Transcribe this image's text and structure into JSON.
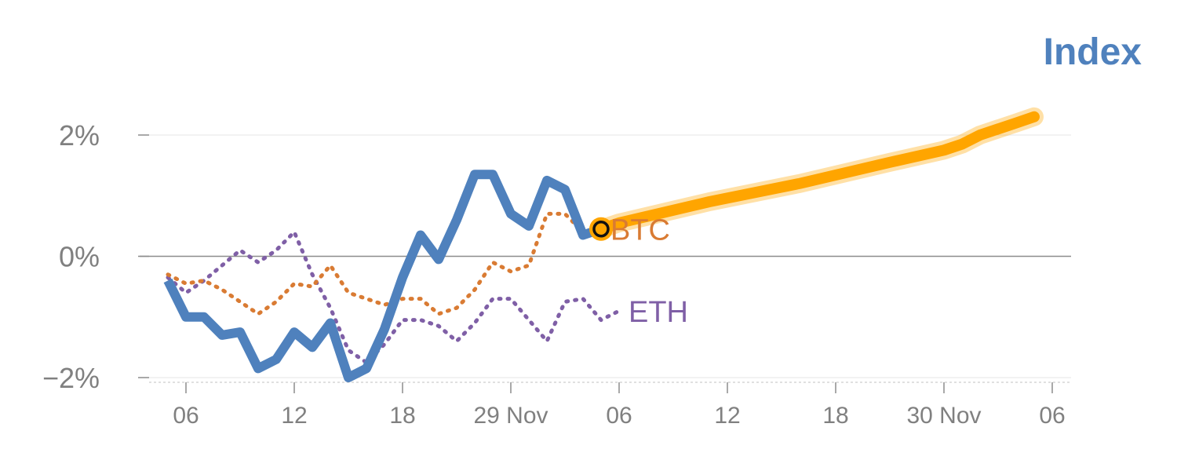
{
  "chart_data": {
    "type": "line",
    "title": "Index",
    "y_unit": "%",
    "ylim": [
      -2,
      2
    ],
    "y_ticks": [
      {
        "value": 2,
        "label": "2%"
      },
      {
        "value": 0,
        "label": "0%"
      },
      {
        "value": -2,
        "label": "−2%"
      }
    ],
    "x_ticks": [
      {
        "x": 6,
        "label": "06"
      },
      {
        "x": 12,
        "label": "12"
      },
      {
        "x": 18,
        "label": "18"
      },
      {
        "x": 24,
        "label": "29 Nov"
      },
      {
        "x": 30,
        "label": "06"
      },
      {
        "x": 36,
        "label": "12"
      },
      {
        "x": 42,
        "label": "18"
      },
      {
        "x": 48,
        "label": "30 Nov"
      },
      {
        "x": 54,
        "label": "06"
      }
    ],
    "series": [
      {
        "name": "ETH",
        "color": "#7f5fa6",
        "style": "dotted",
        "points": [
          [
            5,
            -0.35
          ],
          [
            6,
            -0.6
          ],
          [
            7,
            -0.4
          ],
          [
            8,
            -0.15
          ],
          [
            9,
            0.1
          ],
          [
            10,
            -0.1
          ],
          [
            11,
            0.1
          ],
          [
            12,
            0.4
          ],
          [
            13,
            -0.3
          ],
          [
            14,
            -0.85
          ],
          [
            15,
            -1.55
          ],
          [
            16,
            -1.75
          ],
          [
            17,
            -1.45
          ],
          [
            18,
            -1.05
          ],
          [
            19,
            -1.05
          ],
          [
            20,
            -1.15
          ],
          [
            21,
            -1.4
          ],
          [
            22,
            -1.1
          ],
          [
            23,
            -0.7
          ],
          [
            24,
            -0.7
          ],
          [
            25,
            -1.05
          ],
          [
            26,
            -1.4
          ],
          [
            27,
            -0.75
          ],
          [
            28,
            -0.7
          ],
          [
            29,
            -1.05
          ],
          [
            30,
            -0.9
          ]
        ]
      },
      {
        "name": "BTC",
        "color": "#d97b33",
        "style": "dotted",
        "points": [
          [
            5,
            -0.3
          ],
          [
            6,
            -0.45
          ],
          [
            7,
            -0.4
          ],
          [
            8,
            -0.55
          ],
          [
            9,
            -0.75
          ],
          [
            10,
            -0.95
          ],
          [
            11,
            -0.75
          ],
          [
            12,
            -0.45
          ],
          [
            13,
            -0.5
          ],
          [
            14,
            -0.15
          ],
          [
            15,
            -0.6
          ],
          [
            16,
            -0.7
          ],
          [
            17,
            -0.8
          ],
          [
            18,
            -0.7
          ],
          [
            19,
            -0.7
          ],
          [
            20,
            -0.95
          ],
          [
            21,
            -0.85
          ],
          [
            22,
            -0.55
          ],
          [
            23,
            -0.1
          ],
          [
            24,
            -0.25
          ],
          [
            25,
            -0.15
          ],
          [
            26,
            0.7
          ],
          [
            27,
            0.7
          ],
          [
            28,
            0.4
          ],
          [
            29,
            0.45
          ]
        ]
      },
      {
        "name": "",
        "color": "#4f81bd",
        "style": "solid",
        "points": [
          [
            5,
            -0.4
          ],
          [
            6,
            -1.0
          ],
          [
            7,
            -1.0
          ],
          [
            8,
            -1.3
          ],
          [
            9,
            -1.25
          ],
          [
            10,
            -1.85
          ],
          [
            11,
            -1.7
          ],
          [
            12,
            -1.25
          ],
          [
            13,
            -1.5
          ],
          [
            14,
            -1.1
          ],
          [
            15,
            -2.0
          ],
          [
            16,
            -1.85
          ],
          [
            17,
            -1.2
          ],
          [
            18,
            -0.35
          ],
          [
            19,
            0.35
          ],
          [
            20,
            -0.05
          ],
          [
            21,
            0.6
          ],
          [
            22,
            1.35
          ],
          [
            23,
            1.35
          ],
          [
            24,
            0.7
          ],
          [
            25,
            0.5
          ],
          [
            26,
            1.25
          ],
          [
            27,
            1.1
          ],
          [
            28,
            0.35
          ],
          [
            29,
            0.45
          ]
        ]
      },
      {
        "name": "",
        "color": "#ffa500",
        "style": "forecast",
        "points": [
          [
            29,
            0.45
          ],
          [
            30,
            0.55
          ],
          [
            35,
            0.9
          ],
          [
            40,
            1.2
          ],
          [
            45,
            1.55
          ],
          [
            48,
            1.75
          ],
          [
            49,
            1.85
          ],
          [
            50,
            2.0
          ],
          [
            51,
            2.1
          ],
          [
            52,
            2.2
          ],
          [
            53,
            2.3
          ]
        ]
      }
    ],
    "highlight_point": {
      "x": 29,
      "y": 0.45
    }
  }
}
